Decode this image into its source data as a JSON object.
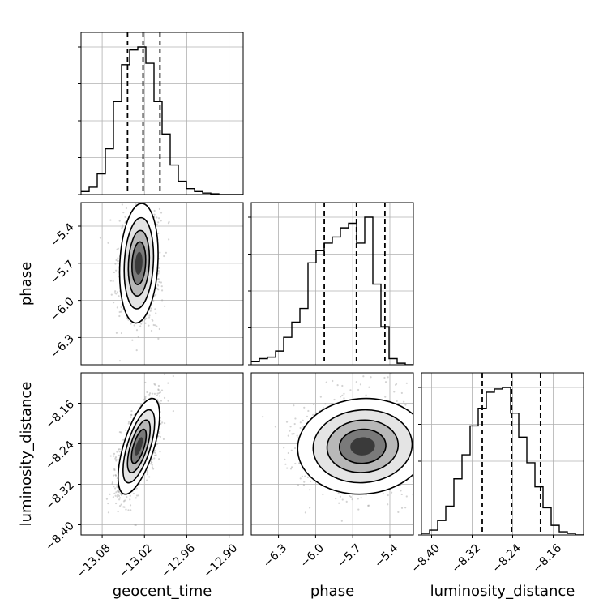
{
  "chart_data": {
    "type": "corner",
    "parameters": [
      {
        "name": "geocent_time",
        "range": [
          -13.11,
          -12.88
        ],
        "ticks": [
          -13.08,
          -13.02,
          -12.96,
          -12.9
        ],
        "tick_labels": [
          "−13.08",
          "−13.02",
          "−12.96",
          "−12.90"
        ]
      },
      {
        "name": "phase",
        "range": [
          -6.52,
          -5.21
        ],
        "ticks": [
          -6.3,
          -6.0,
          -5.7,
          -5.4
        ],
        "tick_labels": [
          "−6.3",
          "−6.0",
          "−5.7",
          "−5.4"
        ]
      },
      {
        "name": "luminosity_distance",
        "range": [
          -8.42,
          -8.1
        ],
        "ticks": [
          -8.4,
          -8.32,
          -8.24,
          -8.16
        ],
        "tick_labels": [
          "−8.40",
          "−8.32",
          "−8.24",
          "−8.16"
        ]
      }
    ],
    "histograms": [
      {
        "param": "geocent_time",
        "edges_start": -13.11,
        "bin_width": 0.0115,
        "counts": [
          0.02,
          0.05,
          0.14,
          0.31,
          0.63,
          0.88,
          0.98,
          1.0,
          0.89,
          0.63,
          0.41,
          0.2,
          0.09,
          0.04,
          0.02,
          0.01,
          0.005,
          0.0,
          0.0,
          0.0
        ],
        "quantiles": [
          -13.044,
          -13.022,
          -12.998
        ]
      },
      {
        "param": "phase",
        "edges_start": -6.52,
        "bin_width": 0.0655,
        "counts": [
          0.02,
          0.04,
          0.05,
          0.09,
          0.18,
          0.28,
          0.37,
          0.67,
          0.75,
          0.8,
          0.84,
          0.9,
          0.93,
          0.8,
          0.97,
          0.53,
          0.25,
          0.04,
          0.01,
          0.0
        ],
        "quantiles": [
          -5.93,
          -5.67,
          -5.44
        ]
      },
      {
        "param": "luminosity_distance",
        "edges_start": -8.42,
        "bin_width": 0.016,
        "counts": [
          0.01,
          0.03,
          0.09,
          0.18,
          0.35,
          0.5,
          0.68,
          0.79,
          0.89,
          0.91,
          0.92,
          0.76,
          0.61,
          0.45,
          0.3,
          0.17,
          0.06,
          0.02,
          0.01,
          0.0
        ],
        "quantiles": [
          -8.3,
          -8.242,
          -8.185
        ]
      }
    ],
    "joint": [
      {
        "x": "geocent_time",
        "y": "phase",
        "mean": [
          -13.028,
          -5.7
        ],
        "sd": [
          0.013,
          0.23
        ],
        "corr": 0.15
      },
      {
        "x": "geocent_time",
        "y": "luminosity_distance",
        "mean": [
          -13.028,
          -8.245
        ],
        "sd": [
          0.014,
          0.045
        ],
        "corr": 0.65
      },
      {
        "x": "phase",
        "y": "luminosity_distance",
        "mean": [
          -5.62,
          -8.245
        ],
        "sd": [
          0.25,
          0.045
        ],
        "corr": 0.05
      }
    ],
    "grid": true,
    "colors": {
      "hist": "#000000",
      "quantile": "#000000",
      "scatter": "#9e9e9e",
      "grid": "#b0b0b0",
      "spine": "#000000"
    }
  }
}
